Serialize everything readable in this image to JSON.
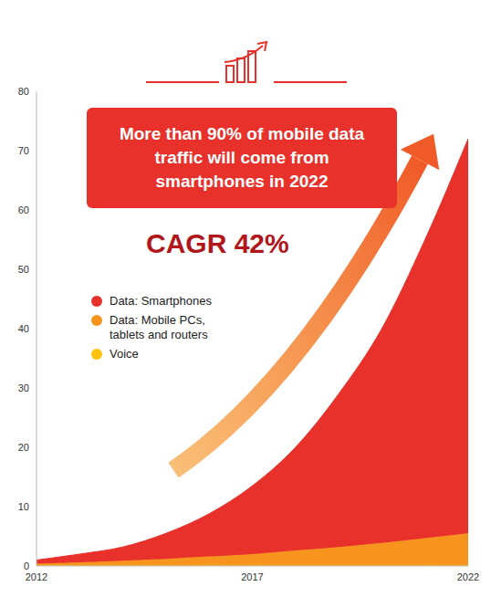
{
  "chart_data": {
    "type": "area",
    "stacked": true,
    "annotations": [
      "More than 90% of mobile data traffic will come from smartphones in 2022",
      "CAGR 42%"
    ],
    "x": [
      2012,
      2013,
      2014,
      2015,
      2016,
      2017,
      2018,
      2019,
      2020,
      2021,
      2022
    ],
    "series": [
      {
        "name": "Data: Smartphones",
        "color": "#e8312a",
        "values": [
          0.6,
          1.4,
          2.3,
          4.3,
          7.2,
          11.5,
          17.4,
          25.8,
          36.1,
          50.3,
          66.5
        ]
      },
      {
        "name": "Data: Mobile PCs, tablets and routers",
        "color": "#f7941d",
        "values": [
          0.3,
          0.5,
          0.8,
          1.1,
          1.5,
          1.9,
          2.5,
          3.1,
          3.8,
          4.6,
          5.4
        ]
      },
      {
        "name": "Voice",
        "color": "#ffc20e",
        "values": [
          0.1,
          0.1,
          0.1,
          0.1,
          0.1,
          0.1,
          0.1,
          0.1,
          0.1,
          0.1,
          0.1
        ]
      }
    ],
    "xlim": [
      2012,
      2022
    ],
    "xticks": [
      2012,
      2017,
      2022
    ],
    "ylim": [
      0,
      80
    ],
    "yticks": [
      0,
      10,
      20,
      30,
      40,
      50,
      60,
      70,
      80
    ],
    "grid": false,
    "legend": "upper left"
  }
}
